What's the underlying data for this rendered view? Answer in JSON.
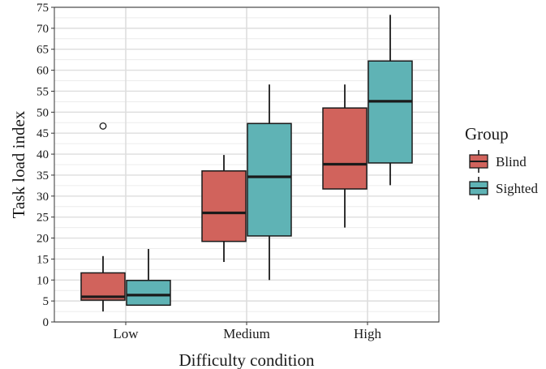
{
  "chart_data": {
    "type": "boxplot",
    "xlabel": "Difficulty condition",
    "ylabel": "Task load index",
    "categories": [
      "Low",
      "Medium",
      "High"
    ],
    "ylim": [
      0,
      75
    ],
    "yticks": [
      0,
      5,
      10,
      15,
      20,
      25,
      30,
      35,
      40,
      45,
      50,
      55,
      60,
      65,
      70,
      75
    ],
    "grid": true,
    "legend": {
      "title": "Group",
      "position": "right"
    },
    "series": [
      {
        "name": "Blind",
        "color": "#d1635c",
        "boxes": [
          {
            "category": "Low",
            "whisker_low": 2.5,
            "q1": 5.2,
            "median": 6.0,
            "q3": 11.7,
            "whisker_high": 15.7,
            "outliers": [
              46.7
            ]
          },
          {
            "category": "Medium",
            "whisker_low": 14.3,
            "q1": 19.2,
            "median": 26.0,
            "q3": 36.0,
            "whisker_high": 39.8,
            "outliers": []
          },
          {
            "category": "High",
            "whisker_low": 22.5,
            "q1": 31.7,
            "median": 37.6,
            "q3": 51.0,
            "whisker_high": 56.6,
            "outliers": []
          }
        ]
      },
      {
        "name": "Sighted",
        "color": "#5fb3b5",
        "boxes": [
          {
            "category": "Low",
            "whisker_low": 4.0,
            "q1": 4.0,
            "median": 6.4,
            "q3": 9.9,
            "whisker_high": 17.4,
            "outliers": []
          },
          {
            "category": "Medium",
            "whisker_low": 10.0,
            "q1": 20.5,
            "median": 34.6,
            "q3": 47.3,
            "whisker_high": 56.6,
            "outliers": []
          },
          {
            "category": "High",
            "whisker_low": 32.6,
            "q1": 37.9,
            "median": 52.6,
            "q3": 62.2,
            "whisker_high": 73.2,
            "outliers": []
          }
        ]
      }
    ]
  }
}
